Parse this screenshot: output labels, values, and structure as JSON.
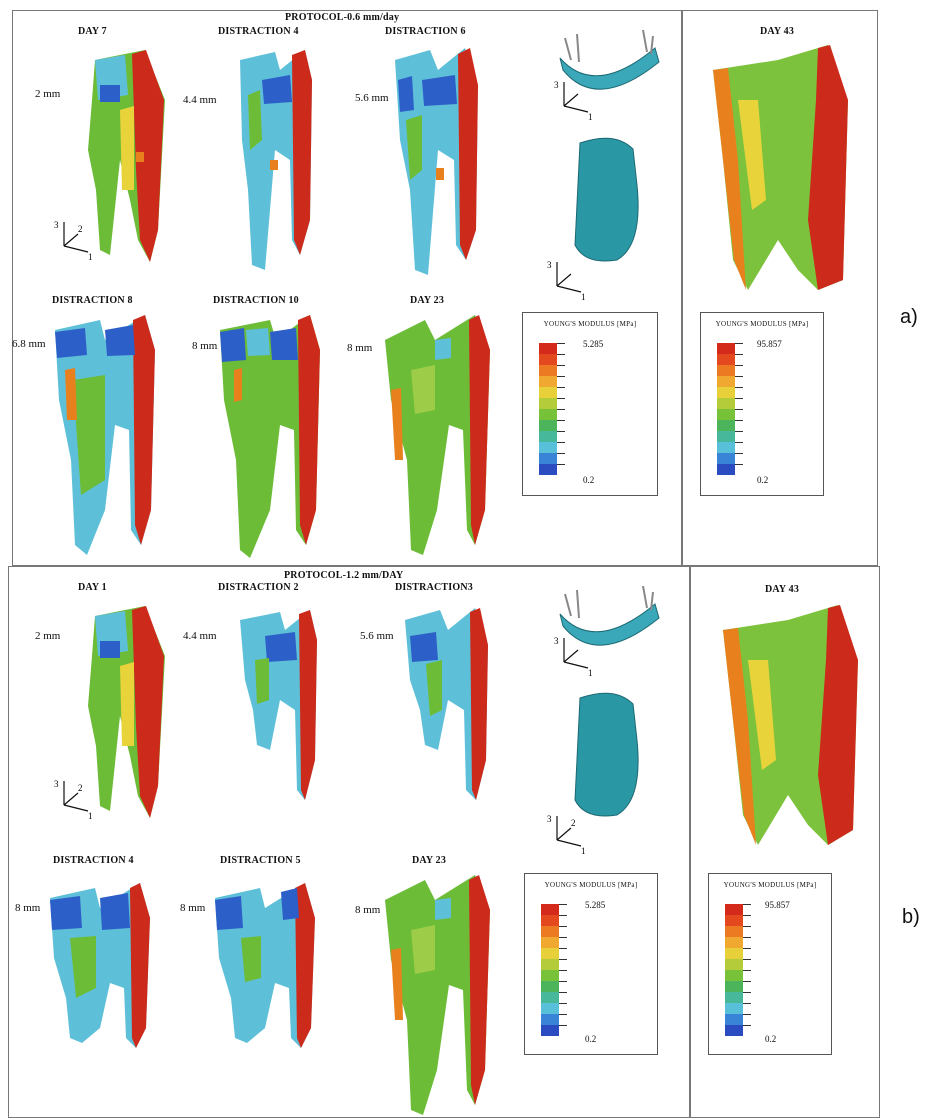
{
  "figure_a": {
    "protocol_title": "PROTOCOL-0.6 mm/day",
    "panel_label": "a)",
    "row1": [
      {
        "title": "DAY 7",
        "measure": "2 mm"
      },
      {
        "title": "DISTRACTION 4",
        "measure": "4.4 mm"
      },
      {
        "title": "DISTRACTION 6",
        "measure": "5.6 mm"
      }
    ],
    "row2": [
      {
        "title": "DISTRACTION 8",
        "measure": "6.8 mm"
      },
      {
        "title": "DISTRACTION 10",
        "measure": "8 mm"
      },
      {
        "title": "DAY 23",
        "measure": "8 mm"
      }
    ],
    "legend_left": {
      "title": "YOUNG'S MODULUS [MPa]",
      "max": "5.285",
      "min": "0.2"
    },
    "right_title": "DAY 43",
    "legend_right": {
      "title": "YOUNG'S MODULUS [MPa]",
      "max": "95.857",
      "min": "0.2"
    },
    "axis_labels": [
      "3",
      "2",
      "1"
    ]
  },
  "figure_b": {
    "protocol_title": "PROTOCOL-1.2 mm/DAY",
    "panel_label": "b)",
    "row1": [
      {
        "title": "DAY 1",
        "measure": "2 mm"
      },
      {
        "title": "DISTRACTION 2",
        "measure": "4.4 mm"
      },
      {
        "title": "DISTRACTION3",
        "measure": "5.6 mm"
      }
    ],
    "row2": [
      {
        "title": "DISTRACTION 4",
        "measure": "8 mm"
      },
      {
        "title": "DISTRACTION 5",
        "measure": "8 mm"
      },
      {
        "title": "DAY 23",
        "measure": "8 mm"
      }
    ],
    "legend_left": {
      "title": "YOUNG'S MODULUS [MPa]",
      "max": "5.285",
      "min": "0.2"
    },
    "right_title": "DAY 43",
    "legend_right": {
      "title": "YOUNG'S MODULUS [MPa]",
      "max": "95.857",
      "min": "0.2"
    },
    "axis_labels": [
      "3",
      "2",
      "1"
    ]
  },
  "colors": {
    "red": "#cc2a1a",
    "orange": "#e8801e",
    "yellow": "#e8d43a",
    "green": "#6cbc38",
    "lightgreen": "#9ccc48",
    "cyan": "#5ec0d8",
    "blue": "#2d5fc8",
    "teal": "#3a9aa8"
  },
  "legend_scale": [
    "#d42a1c",
    "#e4481e",
    "#ec7a22",
    "#f0a830",
    "#e8d03a",
    "#b4cc3a",
    "#78c23a",
    "#4cb45a",
    "#48b89a",
    "#58c0d8",
    "#3a84d8",
    "#2a4cc0"
  ]
}
